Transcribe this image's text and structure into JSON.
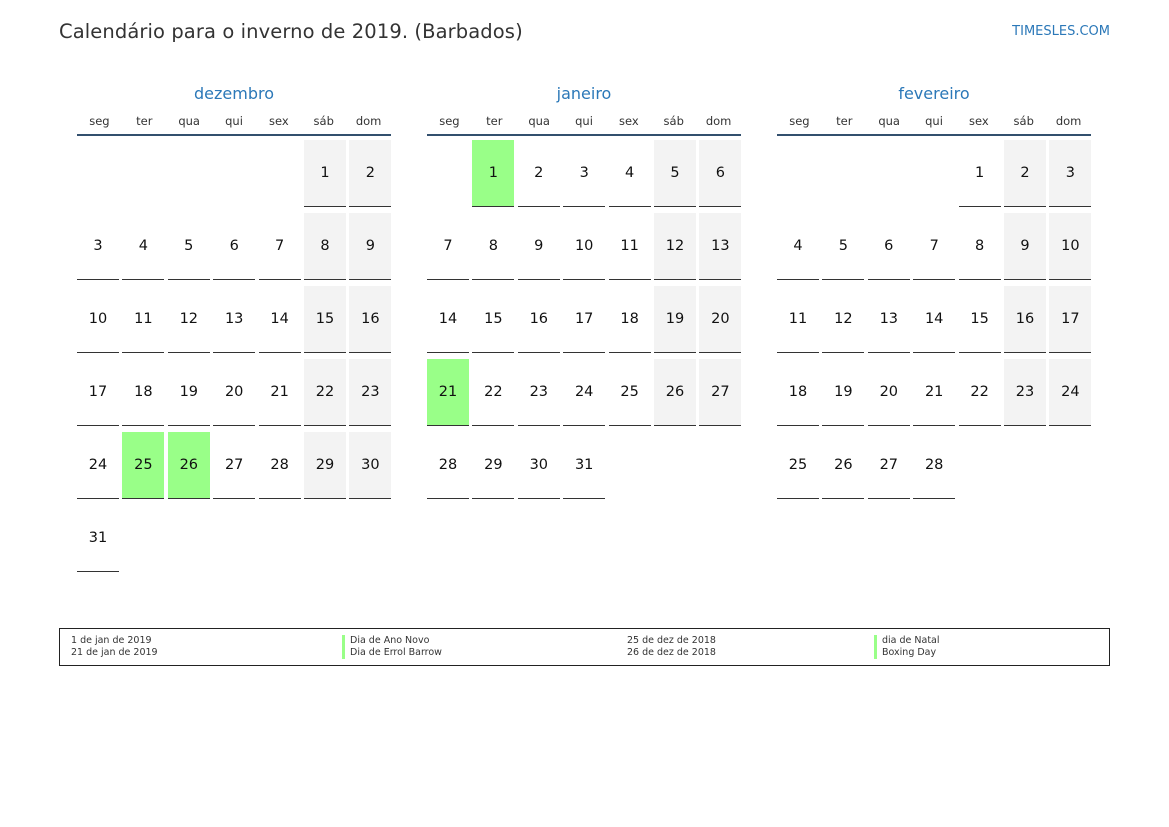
{
  "header": {
    "title": "Calendário para o inverno de 2019. (Barbados)",
    "site": "TIMESLES.COM"
  },
  "weekdays": [
    "seg",
    "ter",
    "qua",
    "qui",
    "sex",
    "sáb",
    "dom"
  ],
  "months": [
    {
      "name": "dezembro",
      "start_weekday": 6,
      "days": 31,
      "holidays": [
        25,
        26
      ]
    },
    {
      "name": "janeiro",
      "start_weekday": 2,
      "days": 31,
      "holidays": [
        1,
        21
      ]
    },
    {
      "name": "fevereiro",
      "start_weekday": 5,
      "days": 28,
      "holidays": []
    }
  ],
  "legend": {
    "left": [
      {
        "date": "1 de jan de 2019",
        "name": "Dia de Ano Novo"
      },
      {
        "date": "21 de jan de 2019",
        "name": "Dia de Errol Barrow"
      }
    ],
    "right": [
      {
        "date": "25 de dez de 2018",
        "name": "dia de Natal"
      },
      {
        "date": "26 de dez de 2018",
        "name": "Boxing Day"
      }
    ]
  },
  "colors": {
    "accent": "#2b78b8",
    "holiday": "#99ff88",
    "weekend": "#f3f3f3",
    "rule": "#33506e"
  }
}
